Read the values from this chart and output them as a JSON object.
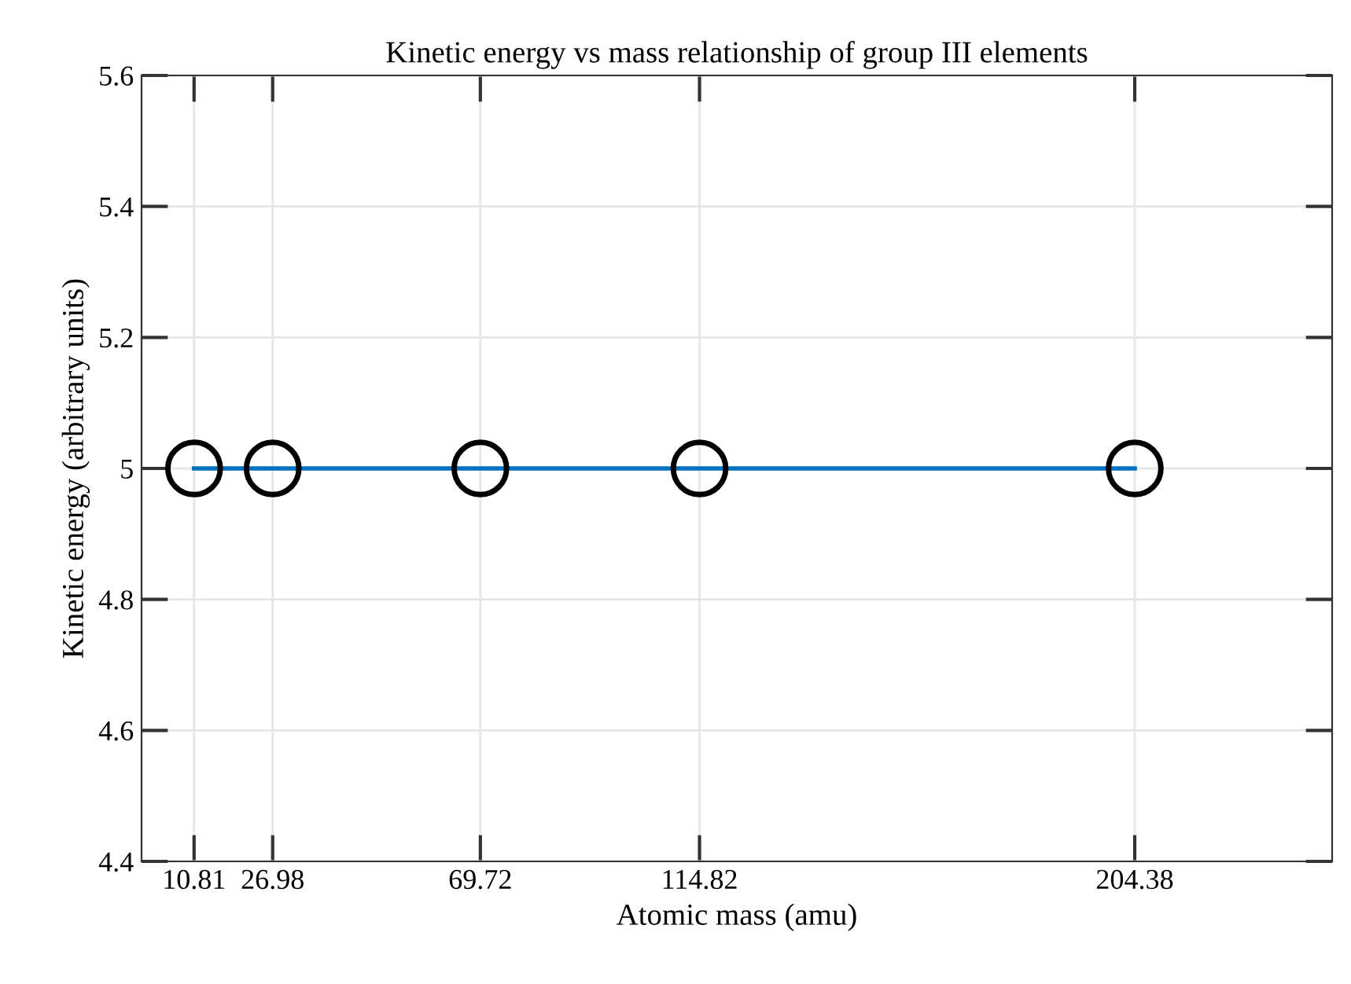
{
  "chart_data": {
    "type": "line",
    "title": "Kinetic energy vs mass relationship of group III elements",
    "xlabel": "Atomic mass (amu)",
    "ylabel": "Kinetic energy (arbitrary units)",
    "x": [
      10.81,
      26.98,
      69.72,
      114.82,
      204.38
    ],
    "series": [
      {
        "color": "#0072bd",
        "values": [
          5,
          5,
          5,
          5,
          5
        ]
      }
    ],
    "xlim": [
      0,
      245
    ],
    "xticks": [
      10.81,
      26.98,
      69.72,
      114.82,
      204.38
    ],
    "ylim": [
      4.4,
      5.6
    ],
    "yticks": [
      4.4,
      4.6,
      4.8,
      5,
      5.2,
      5.4,
      5.6
    ],
    "grid": true,
    "marker": "circle",
    "line_style": "solid"
  }
}
